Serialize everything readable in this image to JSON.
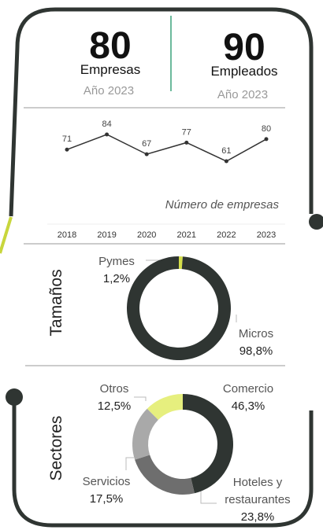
{
  "stats": [
    {
      "value": "80",
      "label": "Empresas",
      "year": "Año 2023"
    },
    {
      "value": "90",
      "label": "Empleados",
      "year": "Año 2023"
    }
  ],
  "chart_data": [
    {
      "type": "line",
      "categories": [
        "2018",
        "2019",
        "2020",
        "2021",
        "2022",
        "2023"
      ],
      "values": [
        71,
        84,
        67,
        77,
        61,
        80
      ],
      "color": "#333333",
      "annotation": "Número de empresas"
    },
    {
      "type": "donut",
      "title": "Tamaños",
      "categories": [
        "Pymes",
        "Micros"
      ],
      "values": [
        1.2,
        98.8
      ],
      "value_labels": [
        "1,2%",
        "98,8%"
      ],
      "colors": [
        "#d4de4a",
        "#2f3532"
      ]
    },
    {
      "type": "donut",
      "title": "Sectores",
      "categories": [
        "Comercio",
        "Hoteles y restaurantes",
        "Servicios",
        "Otros"
      ],
      "values": [
        46.3,
        23.8,
        17.5,
        12.5
      ],
      "value_labels": [
        "46,3%",
        "23,8%",
        "17,5%",
        "12,5%"
      ],
      "colors": [
        "#2f3532",
        "#6e6e6e",
        "#a9a9a9",
        "#e6ef7e"
      ]
    }
  ]
}
